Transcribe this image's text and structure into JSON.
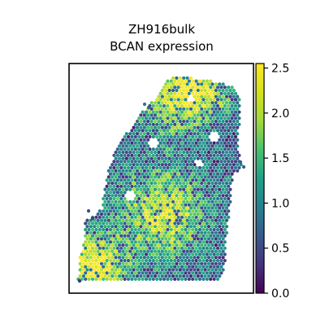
{
  "chart_data": {
    "type": "heatmap",
    "title": "ZH916bulk",
    "subtitle": "BCAN expression",
    "colormap": "viridis",
    "colorbar": {
      "ticks": [
        0.0,
        0.5,
        1.0,
        1.5,
        2.0,
        2.5
      ],
      "tick_labels": [
        "0.0",
        "0.5",
        "1.0",
        "1.5",
        "2.0",
        "2.5"
      ],
      "range": [
        0.0,
        2.55
      ]
    },
    "xaxis_visible": false,
    "yaxis_visible": false,
    "grid": false,
    "hotspots": [
      {
        "region": "lower-left corner",
        "value": 2.5
      },
      {
        "region": "center",
        "value": 2.2
      },
      {
        "region": "upper-middle",
        "value": 2.0
      },
      {
        "region": "top",
        "value": 1.8
      },
      {
        "region": "upper-right",
        "value": 1.6
      }
    ]
  }
}
